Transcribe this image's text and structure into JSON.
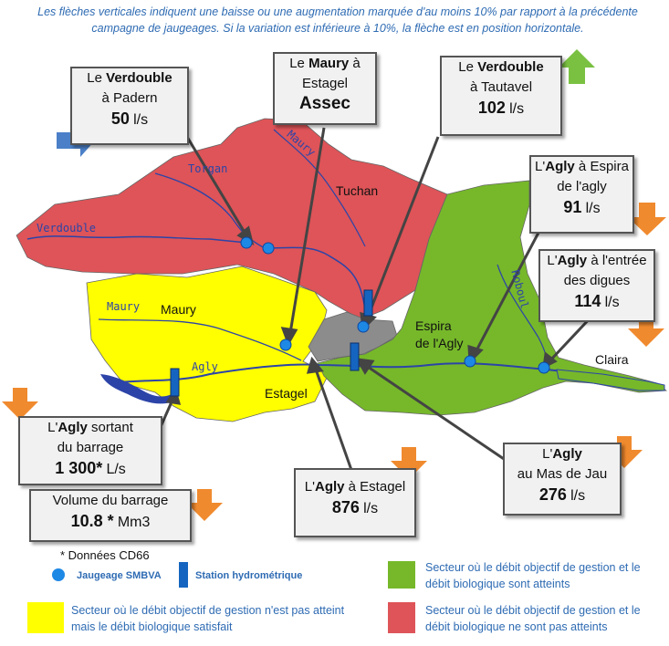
{
  "caption": "Les flèches verticales indiquent une baisse ou une augmentation marquée d'au moins 10% par rapport à la précédente campagne de jaugeages. Si la variation est inférieure à 10%, la flèche est en position horizontale.",
  "colors": {
    "red_sector": "#de5458",
    "yellow_sector": "#ffff00",
    "green_sector": "#76b82a",
    "grey_sector": "#8c8c8c",
    "river": "#2c44a8",
    "arrow_down": "#f08a2e",
    "arrow_up": "#7ac142",
    "arrow_flat": "#4b80c8",
    "station_dot": "#1e88e5",
    "station_bar": "#1565c0"
  },
  "callouts": {
    "padern": {
      "pre": "Le ",
      "river": "Verdouble",
      "post": "à Padern",
      "value": "50",
      "unit": "l/s",
      "trend": "horizontal"
    },
    "estagel_maury": {
      "pre": "Le ",
      "river": "Maury",
      "mid": " à",
      "post": "Estagel",
      "value": "Assec"
    },
    "tautavel": {
      "pre": "Le ",
      "river": "Verdouble",
      "post": "à Tautavel",
      "value": "102",
      "unit": "l/s",
      "trend": "up"
    },
    "espira": {
      "pre": "L'",
      "river": "Agly",
      "mid": " à Espira",
      "post": "de l'agly",
      "value": "91",
      "unit": "l/s",
      "trend": "down"
    },
    "digues": {
      "pre": "L'",
      "river": "Agly",
      "mid": " à l'entrée",
      "post": "des digues",
      "value": "114",
      "unit": "l/s",
      "trend": "down"
    },
    "barrage": {
      "pre": "L'",
      "river": "Agly",
      "mid": "  sortant",
      "post": "du barrage",
      "value": "1 300*",
      "unit": "L/s",
      "trend": "down"
    },
    "volume": {
      "label": "Volume  du barrage",
      "value": "10.8 *",
      "unit": "Mm3",
      "trend": "down"
    },
    "agly_estagel": {
      "pre": "L'",
      "river": "Agly",
      "mid": " à Estagel",
      "value": "876",
      "unit": "l/s",
      "trend": "down"
    },
    "masdejau": {
      "pre": "L'",
      "river": "Agly",
      "post": "au Mas de Jau",
      "value": "276",
      "unit": "l/s",
      "trend": "down"
    }
  },
  "places": {
    "tuchan": "Tuchan",
    "maury": "Maury",
    "estagel": "Estagel",
    "espira": "Espira\nde l'Agly",
    "claira": "Claira"
  },
  "rivers": {
    "torgan": "Torgan",
    "verdouble": "Verdouble",
    "maury": "Maury",
    "agly": "Agly",
    "maury_top": "Maury",
    "boulzane": "Roboul"
  },
  "legend": {
    "note": "* Données CD66",
    "jaugeage": "Jaugeage SMBVA",
    "station": "Station hydrométrique",
    "green": "Secteur où le débit objectif de gestion et le débit biologique sont atteints",
    "yellow": "Secteur où le débit objectif de gestion n'est pas atteint mais le débit biologique satisfait",
    "red": "Secteur où le débit objectif de gestion et le débit biologique ne sont pas atteints"
  }
}
